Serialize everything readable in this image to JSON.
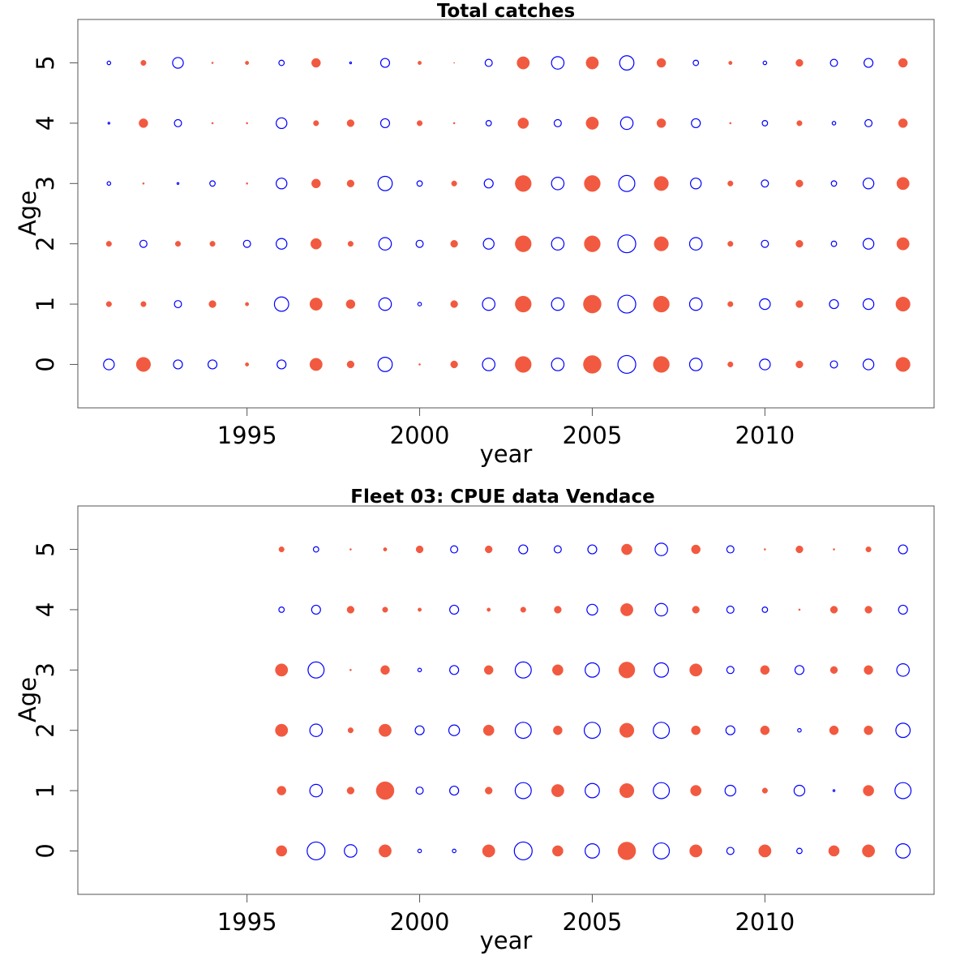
{
  "colors": {
    "positive": "#f15a40",
    "negative": "#0000ff",
    "frame": "#555555"
  },
  "chart_data": [
    {
      "type": "scatter",
      "title": "Total catches",
      "xlabel": "year",
      "ylabel": "Age",
      "xlim": [
        1990.1,
        2014.9
      ],
      "ylim": [
        -0.72,
        5.72
      ],
      "xticks": [
        1995,
        2000,
        2005,
        2010
      ],
      "yticks": [
        0,
        1,
        2,
        3,
        4,
        5
      ],
      "legend": "none",
      "grid": false,
      "encoding": "bubble: value = radius; filled red = positive, open blue = negative",
      "ages": [
        0,
        1,
        2,
        3,
        4,
        5
      ],
      "years": [
        1991,
        1992,
        1993,
        1994,
        1995,
        1996,
        1997,
        1998,
        1999,
        2000,
        2001,
        2002,
        2003,
        2004,
        2005,
        2006,
        2007,
        2008,
        2009,
        2010,
        2011,
        2012,
        2013,
        2014
      ],
      "values": [
        [
          -6,
          8,
          -5,
          -5,
          2,
          -5,
          7,
          4,
          -8,
          1,
          4,
          -7,
          9,
          -7,
          10,
          -10,
          9,
          -7,
          3,
          -6,
          4,
          -4,
          -6,
          8
        ],
        [
          3,
          3,
          -4,
          4,
          2,
          -8,
          7,
          5,
          -7,
          -2,
          4,
          -7,
          9,
          -7,
          10,
          -10,
          9,
          -7,
          3,
          -6,
          4,
          -5,
          -6,
          8
        ],
        [
          3,
          -4,
          3,
          3,
          -4,
          -6,
          6,
          3,
          -7,
          -4,
          4,
          -6,
          9,
          -7,
          9,
          -10,
          8,
          -7,
          3,
          -4,
          4,
          -3,
          -6,
          7
        ],
        [
          -2,
          1,
          -1,
          -3,
          1,
          -6,
          5,
          4,
          -8,
          -3,
          3,
          -5,
          9,
          -7,
          9,
          -9,
          8,
          -6,
          3,
          -4,
          4,
          -3,
          -6,
          7
        ],
        [
          -1,
          5,
          -4,
          1,
          1,
          -6,
          3,
          4,
          -5,
          3,
          1,
          -3,
          6,
          -4,
          7,
          -7,
          5,
          -5,
          1,
          -3,
          3,
          -2,
          -4,
          5
        ],
        [
          -2,
          3,
          -6,
          1,
          2,
          -3,
          5,
          -1,
          -5,
          2,
          0.5,
          -4,
          7,
          -7,
          7,
          -8,
          5,
          -3,
          2,
          -2,
          4,
          -4,
          -5,
          5
        ]
      ]
    },
    {
      "type": "scatter",
      "title": "Fleet 03:  CPUE data Vendace",
      "xlabel": "year",
      "ylabel": "Age",
      "xlim": [
        1990.1,
        2014.9
      ],
      "ylim": [
        -0.72,
        5.72
      ],
      "xticks": [
        1995,
        2000,
        2005,
        2010
      ],
      "yticks": [
        0,
        1,
        2,
        3,
        4,
        5
      ],
      "legend": "none",
      "grid": false,
      "encoding": "bubble: value = radius; filled red = positive, open blue = negative",
      "ages": [
        0,
        1,
        2,
        3,
        4,
        5
      ],
      "years": [
        1996,
        1997,
        1998,
        1999,
        2000,
        2001,
        2002,
        2003,
        2004,
        2005,
        2006,
        2007,
        2008,
        2009,
        2010,
        2011,
        2012,
        2013,
        2014
      ],
      "values": [
        [
          6,
          -10,
          -7,
          7,
          -2,
          -2,
          7,
          -10,
          6,
          -8,
          10,
          -9,
          7,
          -4,
          7,
          -3,
          6,
          7,
          -8
        ],
        [
          5,
          -7,
          4,
          10,
          -4,
          -5,
          4,
          -9,
          7,
          -8,
          8,
          -9,
          6,
          -6,
          3,
          -6,
          -1,
          6,
          -9
        ],
        [
          7,
          -7,
          3,
          7,
          -5,
          -6,
          6,
          -9,
          5,
          -9,
          8,
          -9,
          5,
          -5,
          5,
          -2,
          5,
          5,
          -8
        ],
        [
          7,
          -9,
          1,
          5,
          -2,
          -5,
          5,
          -9,
          6,
          -8,
          9,
          -8,
          7,
          -4,
          5,
          -5,
          4,
          5,
          -7
        ],
        [
          -3,
          -5,
          4,
          3,
          2,
          -5,
          2,
          3,
          4,
          -6,
          7,
          -7,
          4,
          -4,
          -3,
          1,
          4,
          4,
          -5
        ],
        [
          3,
          -3,
          1,
          2,
          4,
          -4,
          4,
          -5,
          -4,
          -5,
          6,
          -7,
          5,
          -4,
          1,
          4,
          1,
          3,
          -5
        ]
      ]
    }
  ]
}
